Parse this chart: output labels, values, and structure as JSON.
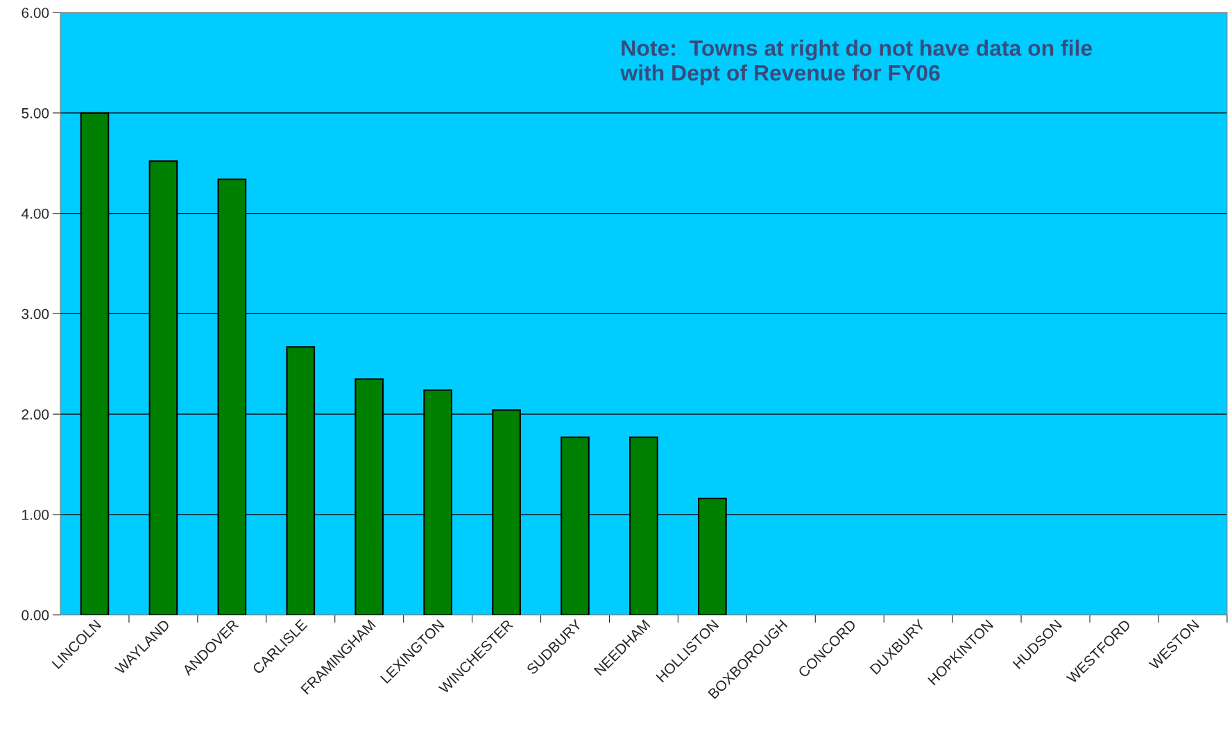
{
  "chart_data": {
    "type": "bar",
    "categories": [
      "LINCOLN",
      "WAYLAND",
      "ANDOVER",
      "CARLISLE",
      "FRAMINGHAM",
      "LEXINGTON",
      "WINCHESTER",
      "SUDBURY",
      "NEEDHAM",
      "HOLLISTON",
      "BOXBOROUGH",
      "CONCORD",
      "DUXBURY",
      "HOPKINTON",
      "HUDSON",
      "WESTFORD",
      "WESTON"
    ],
    "values": [
      5.0,
      4.52,
      4.34,
      2.67,
      2.35,
      2.24,
      2.04,
      1.77,
      1.77,
      1.16,
      null,
      null,
      null,
      null,
      null,
      null,
      null
    ],
    "color": "#008000",
    "ylim": [
      0,
      6
    ],
    "yticks": [
      {
        "value": 0,
        "label": "0.00"
      },
      {
        "value": 1,
        "label": "1.00"
      },
      {
        "value": 2,
        "label": "2.00"
      },
      {
        "value": 3,
        "label": "3.00"
      },
      {
        "value": 4,
        "label": "4.00"
      },
      {
        "value": 5,
        "label": "5.00"
      },
      {
        "value": 6,
        "label": "6.00"
      }
    ],
    "grid": "y",
    "annotations": [
      "Note:  Towns at right do not have data on file\nwith Dept of Revenue for FY06"
    ]
  }
}
